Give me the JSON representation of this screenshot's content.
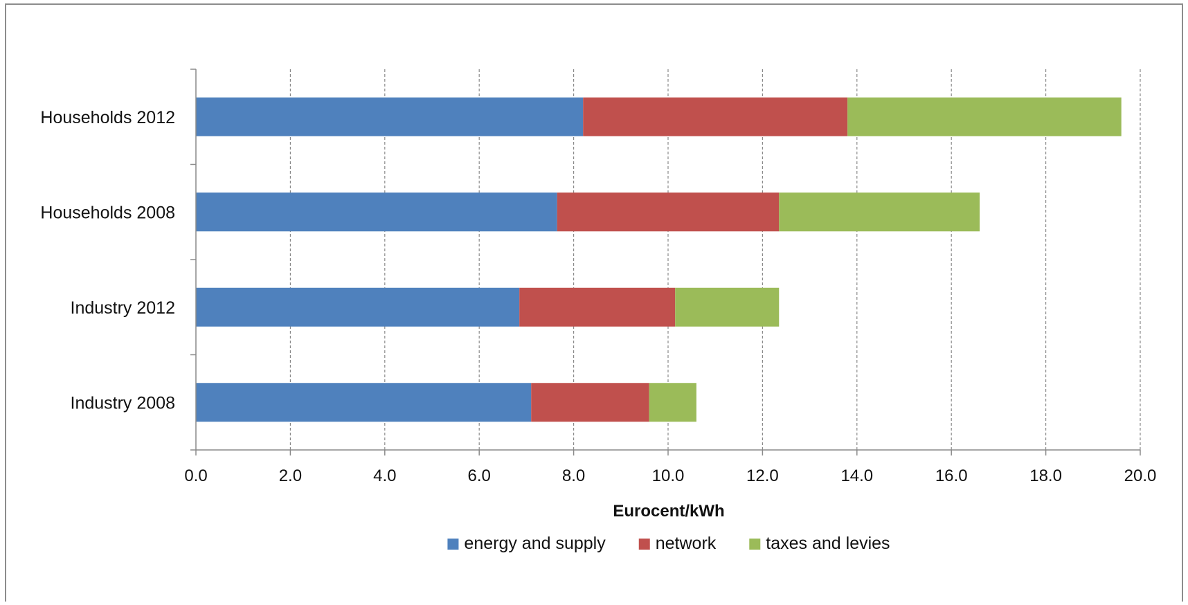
{
  "chart_data": {
    "type": "bar",
    "orientation": "horizontal",
    "stacked": true,
    "categories": [
      "Households 2012",
      "Households 2008",
      "Industry 2012",
      "Industry 2008"
    ],
    "series": [
      {
        "name": "energy and supply",
        "color": "#4f81bd",
        "values": [
          8.2,
          7.65,
          6.85,
          7.1
        ]
      },
      {
        "name": "network",
        "color": "#c0504d",
        "values": [
          5.6,
          4.7,
          3.3,
          2.5
        ]
      },
      {
        "name": "taxes and levies",
        "color": "#9bbb59",
        "values": [
          5.8,
          4.25,
          2.2,
          1.0
        ]
      }
    ],
    "xlabel": "Eurocent/kWh",
    "ylabel": "",
    "xlim": [
      0,
      20
    ],
    "x_ticks": [
      "0.0",
      "2.0",
      "4.0",
      "6.0",
      "8.0",
      "10.0",
      "12.0",
      "14.0",
      "16.0",
      "18.0",
      "20.0"
    ],
    "grid": "vertical dashed",
    "legend_position": "bottom"
  }
}
